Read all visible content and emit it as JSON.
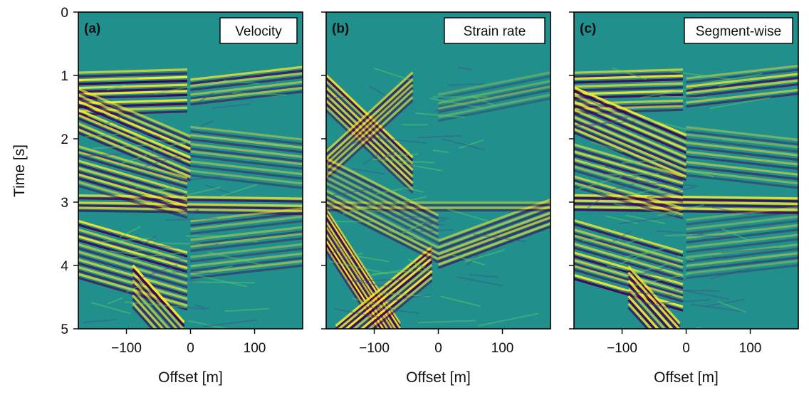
{
  "figure": {
    "ylabel": "Time [s]",
    "colormap": [
      "#440154",
      "#3b528b",
      "#21908d",
      "#5dc963",
      "#fde725"
    ],
    "background_color": "#21908d",
    "frame_color": "#000000"
  },
  "chart_data": [
    {
      "type": "heatmap",
      "panel_letter": "(a)",
      "title": "Velocity",
      "xlabel": "Offset [m]",
      "ylabel": "Time [s]",
      "xlim": [
        -175,
        175
      ],
      "ylim": [
        5,
        0
      ],
      "xticks": [
        -100,
        0,
        100
      ],
      "xtick_labels": [
        "−100",
        "0",
        "100"
      ],
      "yticks": [
        0,
        1,
        2,
        3,
        4,
        5
      ],
      "ytick_labels": [
        "0",
        "1",
        "2",
        "3",
        "4",
        "5"
      ],
      "grid": false
    },
    {
      "type": "heatmap",
      "panel_letter": "(b)",
      "title": "Strain rate",
      "xlabel": "Offset [m]",
      "ylabel": "",
      "xlim": [
        -175,
        175
      ],
      "ylim": [
        5,
        0
      ],
      "xticks": [
        -100,
        0,
        100
      ],
      "xtick_labels": [
        "−100",
        "0",
        "100"
      ],
      "yticks": [
        0,
        1,
        2,
        3,
        4,
        5
      ],
      "ytick_labels": [],
      "grid": false
    },
    {
      "type": "heatmap",
      "panel_letter": "(c)",
      "title": "Segment-wise",
      "xlabel": "Offset [m]",
      "ylabel": "",
      "xlim": [
        -175,
        175
      ],
      "ylim": [
        5,
        0
      ],
      "xticks": [
        -100,
        0,
        100
      ],
      "xtick_labels": [
        "−100",
        "0",
        "100"
      ],
      "yticks": [
        0,
        1,
        2,
        3,
        4,
        5
      ],
      "ytick_labels": [],
      "grid": false
    }
  ]
}
